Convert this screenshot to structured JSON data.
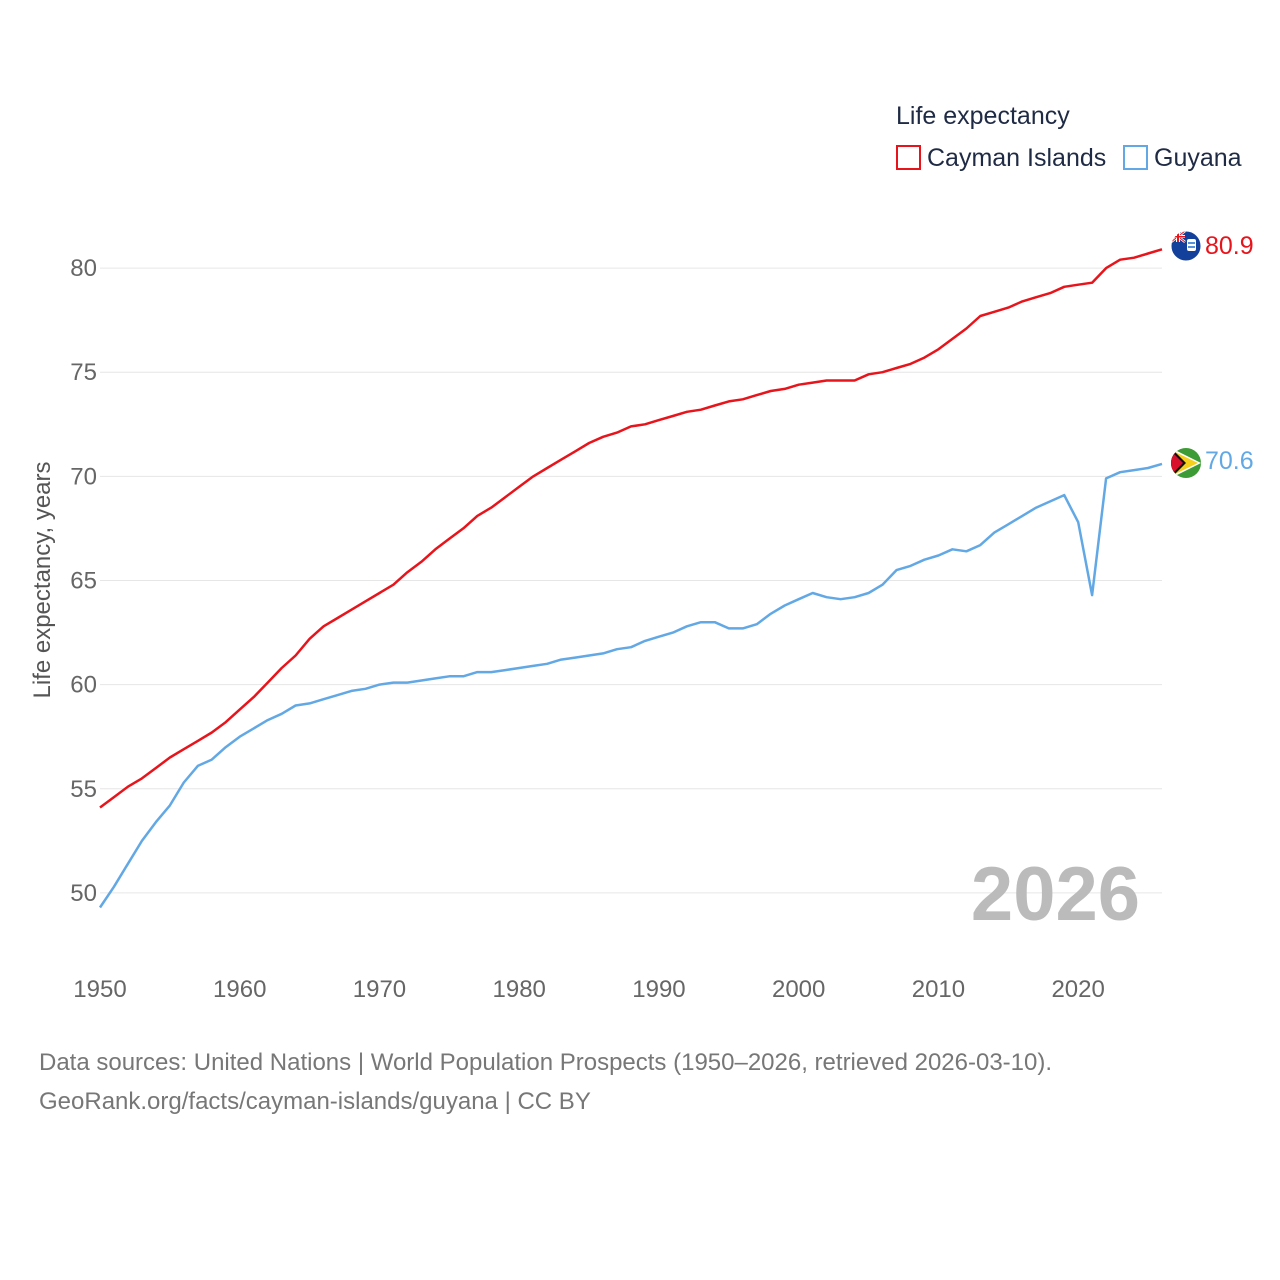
{
  "chart_data": {
    "type": "line",
    "ylabel": "Life expectancy, years",
    "xlim": [
      1950,
      2026
    ],
    "ylim": [
      47.5,
      82.5
    ],
    "x_ticks": [
      "1950",
      "1960",
      "1970",
      "1980",
      "1990",
      "2000",
      "2010",
      "2020"
    ],
    "y_ticks": [
      "50",
      "55",
      "60",
      "65",
      "70",
      "75",
      "80"
    ],
    "grid": true,
    "legend": {
      "title": "Life expectancy",
      "position": "top-right"
    },
    "year_label": "2026",
    "series": [
      {
        "name": "Cayman Islands",
        "color": "#e8141b",
        "end_label": "80.9",
        "flag_icon": "cayman-islands-flag-icon",
        "x": [
          1950,
          1951,
          1952,
          1953,
          1954,
          1955,
          1956,
          1957,
          1958,
          1959,
          1960,
          1961,
          1962,
          1963,
          1964,
          1965,
          1966,
          1967,
          1968,
          1969,
          1970,
          1971,
          1972,
          1973,
          1974,
          1975,
          1976,
          1977,
          1978,
          1979,
          1980,
          1981,
          1982,
          1983,
          1984,
          1985,
          1986,
          1987,
          1988,
          1989,
          1990,
          1991,
          1992,
          1993,
          1994,
          1995,
          1996,
          1997,
          1998,
          1999,
          2000,
          2001,
          2002,
          2003,
          2004,
          2005,
          2006,
          2007,
          2008,
          2009,
          2010,
          2011,
          2012,
          2013,
          2014,
          2015,
          2016,
          2017,
          2018,
          2019,
          2020,
          2021,
          2022,
          2023,
          2024,
          2025,
          2026
        ],
        "values": [
          54.1,
          54.6,
          55.1,
          55.5,
          56.0,
          56.5,
          56.9,
          57.3,
          57.7,
          58.2,
          58.8,
          59.4,
          60.1,
          60.8,
          61.4,
          62.2,
          62.8,
          63.2,
          63.6,
          64.0,
          64.4,
          64.8,
          65.4,
          65.9,
          66.5,
          67.0,
          67.5,
          68.1,
          68.5,
          69.0,
          69.5,
          70.0,
          70.4,
          70.8,
          71.2,
          71.6,
          71.9,
          72.1,
          72.4,
          72.5,
          72.7,
          72.9,
          73.1,
          73.2,
          73.4,
          73.6,
          73.7,
          73.9,
          74.1,
          74.2,
          74.4,
          74.5,
          74.6,
          74.6,
          74.6,
          74.9,
          75.0,
          75.2,
          75.4,
          75.7,
          76.1,
          76.6,
          77.1,
          77.7,
          77.9,
          78.1,
          78.4,
          78.6,
          78.8,
          79.1,
          79.2,
          79.3,
          80.0,
          80.4,
          80.5,
          80.7,
          80.9
        ]
      },
      {
        "name": "Guyana",
        "color": "#62a8e5",
        "end_label": "70.6",
        "flag_icon": "guyana-flag-icon",
        "x": [
          1950,
          1951,
          1952,
          1953,
          1954,
          1955,
          1956,
          1957,
          1958,
          1959,
          1960,
          1961,
          1962,
          1963,
          1964,
          1965,
          1966,
          1967,
          1968,
          1969,
          1970,
          1971,
          1972,
          1973,
          1974,
          1975,
          1976,
          1977,
          1978,
          1979,
          1980,
          1981,
          1982,
          1983,
          1984,
          1985,
          1986,
          1987,
          1988,
          1989,
          1990,
          1991,
          1992,
          1993,
          1994,
          1995,
          1996,
          1997,
          1998,
          1999,
          2000,
          2001,
          2002,
          2003,
          2004,
          2005,
          2006,
          2007,
          2008,
          2009,
          2010,
          2011,
          2012,
          2013,
          2014,
          2015,
          2016,
          2017,
          2018,
          2019,
          2020,
          2021,
          2022,
          2023,
          2024,
          2025,
          2026
        ],
        "values": [
          49.3,
          50.3,
          51.4,
          52.5,
          53.4,
          54.2,
          55.3,
          56.1,
          56.4,
          57.0,
          57.5,
          57.9,
          58.3,
          58.6,
          59.0,
          59.1,
          59.3,
          59.5,
          59.7,
          59.8,
          60.0,
          60.1,
          60.1,
          60.2,
          60.3,
          60.4,
          60.4,
          60.6,
          60.6,
          60.7,
          60.8,
          60.9,
          61.0,
          61.2,
          61.3,
          61.4,
          61.5,
          61.7,
          61.8,
          62.1,
          62.3,
          62.5,
          62.8,
          63.0,
          63.0,
          62.7,
          62.7,
          62.9,
          63.4,
          63.8,
          64.1,
          64.4,
          64.2,
          64.1,
          64.2,
          64.4,
          64.8,
          65.5,
          65.7,
          66.0,
          66.2,
          66.5,
          66.4,
          66.7,
          67.3,
          67.7,
          68.1,
          68.5,
          68.8,
          69.1,
          67.8,
          64.3,
          69.9,
          70.2,
          70.3,
          70.4,
          70.6
        ]
      }
    ]
  },
  "footer": {
    "sources": "Data sources: United Nations | World Population Prospects (1950–2026, retrieved 2026-03-10).",
    "credit": "GeoRank.org/facts/cayman-islands/guyana | CC BY"
  }
}
